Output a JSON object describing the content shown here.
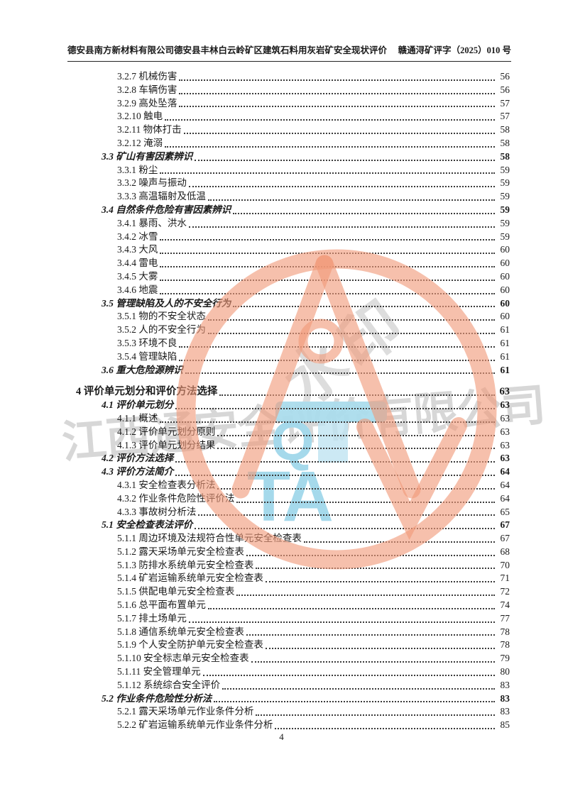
{
  "header": {
    "left": "德安县南方新材料有限公司德安县丰林白云岭矿区建筑石料用灰岩矿安全现状评价",
    "right": "赣通浔矿评字（2025）010 号"
  },
  "toc": {
    "entries": [
      {
        "level": 3,
        "no": "3.2.7",
        "title": "机械伤害",
        "page": "56"
      },
      {
        "level": 3,
        "no": "3.2.8",
        "title": "车辆伤害",
        "page": "56"
      },
      {
        "level": 3,
        "no": "3.2.9",
        "title": "高处坠落",
        "page": "57"
      },
      {
        "level": 3,
        "no": "3.2.10",
        "title": "触电",
        "page": "57"
      },
      {
        "level": 3,
        "no": "3.2.11",
        "title": "物体打击",
        "page": "58"
      },
      {
        "level": 3,
        "no": "3.2.12",
        "title": "淹溺",
        "page": "58"
      },
      {
        "level": 2,
        "no": "3.3",
        "title": "矿山有害因素辨识",
        "page": "58"
      },
      {
        "level": 3,
        "no": "3.3.1",
        "title": "粉尘",
        "page": "59"
      },
      {
        "level": 3,
        "no": "3.3.2",
        "title": "噪声与振动",
        "page": "59"
      },
      {
        "level": 3,
        "no": "3.3.3",
        "title": "高温辐射及低温",
        "page": "59"
      },
      {
        "level": 2,
        "no": "3.4",
        "title": "自然条件危险有害因素辨识",
        "page": "59"
      },
      {
        "level": 3,
        "no": "3.4.1",
        "title": "暴雨、洪水",
        "page": "59"
      },
      {
        "level": 3,
        "no": "3.4.2",
        "title": "冰雪",
        "page": "59"
      },
      {
        "level": 3,
        "no": "3.4.3",
        "title": "大风",
        "page": "60"
      },
      {
        "level": 3,
        "no": "3.4.4",
        "title": "雷电",
        "page": "60"
      },
      {
        "level": 3,
        "no": "3.4.5",
        "title": "大雾",
        "page": "60"
      },
      {
        "level": 3,
        "no": "3.4.6",
        "title": "地震",
        "page": "60"
      },
      {
        "level": 2,
        "no": "3.5",
        "title": "管理缺陷及人的不安全行为",
        "page": "60"
      },
      {
        "level": 3,
        "no": "3.5.1",
        "title": "物的不安全状态",
        "page": "60"
      },
      {
        "level": 3,
        "no": "3.5.2",
        "title": "人的不安全行为",
        "page": "61"
      },
      {
        "level": 3,
        "no": "3.5.3",
        "title": "环境不良",
        "page": "61"
      },
      {
        "level": 3,
        "no": "3.5.4",
        "title": "管理缺陷",
        "page": "61"
      },
      {
        "level": 2,
        "no": "3.6",
        "title": "重大危险源辨识",
        "page": "61"
      },
      {
        "level": 1,
        "no": "4",
        "title": "评价单元划分和评价方法选择",
        "page": "63"
      },
      {
        "level": 2,
        "no": "4.1",
        "title": "评价单元划分",
        "page": "63"
      },
      {
        "level": 3,
        "no": "4.1.1",
        "title": "概述",
        "page": "63"
      },
      {
        "level": 3,
        "no": "4.1.2",
        "title": "评价单元划分原则",
        "page": "63"
      },
      {
        "level": 3,
        "no": "4.1.3",
        "title": "评价单元划分结果",
        "page": "63"
      },
      {
        "level": 2,
        "no": "4.2",
        "title": "评价方法选择",
        "page": "63"
      },
      {
        "level": 2,
        "no": "4.3",
        "title": "评价方法简介",
        "page": "64"
      },
      {
        "level": 3,
        "no": "4.3.1",
        "title": "安全检查表分析法",
        "page": "64"
      },
      {
        "level": 3,
        "no": "4.3.2",
        "title": "作业条件危险性评价法",
        "page": "64"
      },
      {
        "level": 3,
        "no": "4.3.3",
        "title": "事故树分析法",
        "page": "65"
      },
      {
        "level": 2,
        "no": "5.1",
        "title": "安全检查表法评价",
        "page": "67"
      },
      {
        "level": 3,
        "no": "5.1.1",
        "title": "周边环境及法规符合性单元安全检查表",
        "page": "67"
      },
      {
        "level": 3,
        "no": "5.1.2",
        "title": "露天采场单元安全检查表",
        "page": "68"
      },
      {
        "level": 3,
        "no": "5.1.3",
        "title": "防排水系统单元安全检查表",
        "page": "70"
      },
      {
        "level": 3,
        "no": "5.1.4",
        "title": "矿岩运输系统单元安全检查表",
        "page": "71"
      },
      {
        "level": 3,
        "no": "5.1.5",
        "title": "供配电单元安全检查表",
        "page": "72"
      },
      {
        "level": 3,
        "no": "5.1.6",
        "title": "总平面布置单元",
        "page": "74"
      },
      {
        "level": 3,
        "no": "5.1.7",
        "title": "排土场单元",
        "page": "77"
      },
      {
        "level": 3,
        "no": "5.1.8",
        "title": "通信系统单元安全检查表",
        "page": "78"
      },
      {
        "level": 3,
        "no": "5.1.9",
        "title": "个人安全防护单元安全检查表",
        "page": "78"
      },
      {
        "level": 3,
        "no": "5.1.10",
        "title": "安全标志单元安全检查表",
        "page": "79"
      },
      {
        "level": 3,
        "no": "5.1.11",
        "title": "安全管理单元",
        "page": "80"
      },
      {
        "level": 3,
        "no": "5.1.12",
        "title": "系统综合安全评价",
        "page": "83"
      },
      {
        "level": 2,
        "no": "5.2",
        "title": "作业条件危险性分析法",
        "page": "83"
      },
      {
        "level": 3,
        "no": "5.2.1",
        "title": "露天采场单元作业条件分析",
        "page": "83"
      },
      {
        "level": 3,
        "no": "5.2.2",
        "title": "矿岩运输系统单元作业条件分析",
        "page": "85"
      }
    ]
  },
  "footer": {
    "page_number": "4"
  },
  "watermark": {
    "company_name": "江西通安全评价有限公司",
    "seal_text": "水印",
    "blue_q": "Q",
    "blue_ta": "TA",
    "stamp_color": "#f09a79",
    "blue_color": "#a5d9eb",
    "gray_color": "#c9c9c9"
  }
}
